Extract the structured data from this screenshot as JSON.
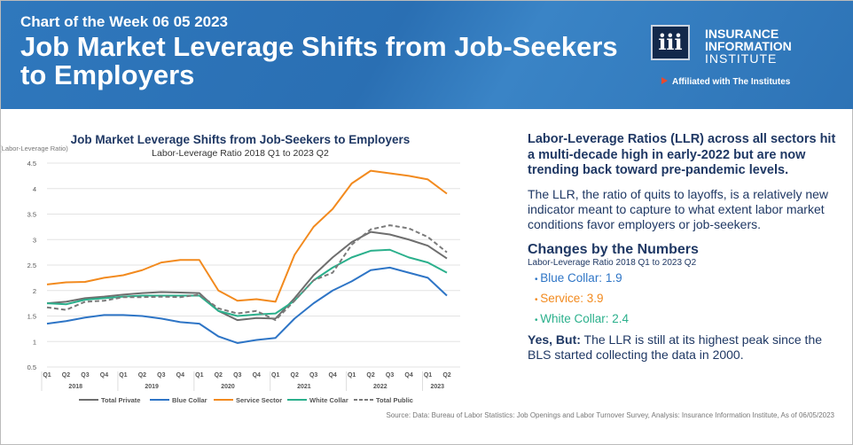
{
  "header": {
    "kicker": "Chart of the Week 06 05 2023",
    "title": "Job Market Leverage Shifts from Job-Seekers to Employers",
    "logo": {
      "mark": "iii",
      "line1": "INSURANCE",
      "line2": "INFORMATION",
      "line3": "INSTITUTE",
      "affiliation": "Affiliated with The Institutes"
    }
  },
  "right": {
    "lead": "Labor-Leverage Ratios (LLR) across all sectors hit a multi-decade high in early-2022 but are now trending back toward pre-pandemic levels.",
    "para": "The LLR, the ratio of quits to layoffs, is a relatively new indicator meant to capture to what extent labor market conditions favor employers or job-seekers.",
    "changes_title": "Changes by the Numbers",
    "changes_sub": "Labor-Leverage Ratio 2018 Q1 to 2023 Q2",
    "items": [
      {
        "label": "Blue Collar: 1.9",
        "color": "#2e75c6"
      },
      {
        "label": "Service: 3.9",
        "color": "#f28a1e"
      },
      {
        "label": "White Collar: 2.4",
        "color": "#2bb08c"
      }
    ],
    "yes_bold": "Yes, But:",
    "yes_text": " The LLR is still at its highest peak since the BLS started collecting the data in 2000."
  },
  "source": "Source: Data: Bureau of Labor Statistics: Job Openings and Labor Turnover Survey, Analysis: Insurance Information Institute, As of 06/05/2023",
  "chart_data": {
    "type": "line",
    "title": "Job Market Leverage Shifts from Job-Seekers to Employers",
    "subtitle": "Labor-Leverage Ratio 2018 Q1 to 2023 Q2",
    "ylabel": "(Labor-Leverage Ratio)",
    "ylim": [
      0.5,
      4.5
    ],
    "yticks": [
      "0.5",
      "1",
      "1.5",
      "2",
      "2.5",
      "3",
      "3.5",
      "4",
      "4.5"
    ],
    "quarters": [
      "Q1",
      "Q2",
      "Q3",
      "Q4",
      "Q1",
      "Q2",
      "Q3",
      "Q4",
      "Q1",
      "Q2",
      "Q3",
      "Q4",
      "Q1",
      "Q2",
      "Q3",
      "Q4",
      "Q1",
      "Q2",
      "Q3",
      "Q4",
      "Q1",
      "Q2"
    ],
    "years": [
      {
        "label": "2018",
        "start": 0,
        "end": 3
      },
      {
        "label": "2019",
        "start": 4,
        "end": 7
      },
      {
        "label": "2020",
        "start": 8,
        "end": 11
      },
      {
        "label": "2021",
        "start": 12,
        "end": 15
      },
      {
        "label": "2022",
        "start": 16,
        "end": 19
      },
      {
        "label": "2023",
        "start": 20,
        "end": 21
      }
    ],
    "grid": true,
    "legend": "bottom",
    "series": [
      {
        "name": "Total Private",
        "color": "#6e6e6e",
        "dash": false,
        "values": [
          1.75,
          1.78,
          1.85,
          1.88,
          1.92,
          1.95,
          1.97,
          1.96,
          1.95,
          1.6,
          1.42,
          1.46,
          1.45,
          1.85,
          2.3,
          2.65,
          2.95,
          3.15,
          3.1,
          3.0,
          2.88,
          2.63
        ]
      },
      {
        "name": "Blue Collar",
        "color": "#2e75c6",
        "dash": false,
        "values": [
          1.35,
          1.4,
          1.47,
          1.52,
          1.52,
          1.5,
          1.45,
          1.38,
          1.35,
          1.1,
          0.97,
          1.03,
          1.07,
          1.45,
          1.75,
          2.0,
          2.18,
          2.4,
          2.45,
          2.35,
          2.25,
          1.9
        ]
      },
      {
        "name": "Service Sector",
        "color": "#f28a1e",
        "dash": false,
        "values": [
          2.12,
          2.16,
          2.17,
          2.25,
          2.3,
          2.4,
          2.55,
          2.6,
          2.6,
          2.0,
          1.8,
          1.83,
          1.78,
          2.7,
          3.25,
          3.6,
          4.1,
          4.35,
          4.3,
          4.25,
          4.18,
          3.9
        ]
      },
      {
        "name": "White Collar",
        "color": "#2bb08c",
        "dash": false,
        "values": [
          1.75,
          1.73,
          1.82,
          1.85,
          1.88,
          1.9,
          1.9,
          1.9,
          1.9,
          1.6,
          1.5,
          1.53,
          1.55,
          1.8,
          2.2,
          2.45,
          2.65,
          2.78,
          2.8,
          2.65,
          2.55,
          2.35
        ]
      },
      {
        "name": "Total Public",
        "color": "#7a7a7a",
        "dash": true,
        "values": [
          1.67,
          1.62,
          1.78,
          1.8,
          1.87,
          1.87,
          1.88,
          1.87,
          1.92,
          1.65,
          1.55,
          1.6,
          1.42,
          1.8,
          2.2,
          2.35,
          2.9,
          3.2,
          3.28,
          3.22,
          3.05,
          2.75
        ]
      }
    ]
  }
}
